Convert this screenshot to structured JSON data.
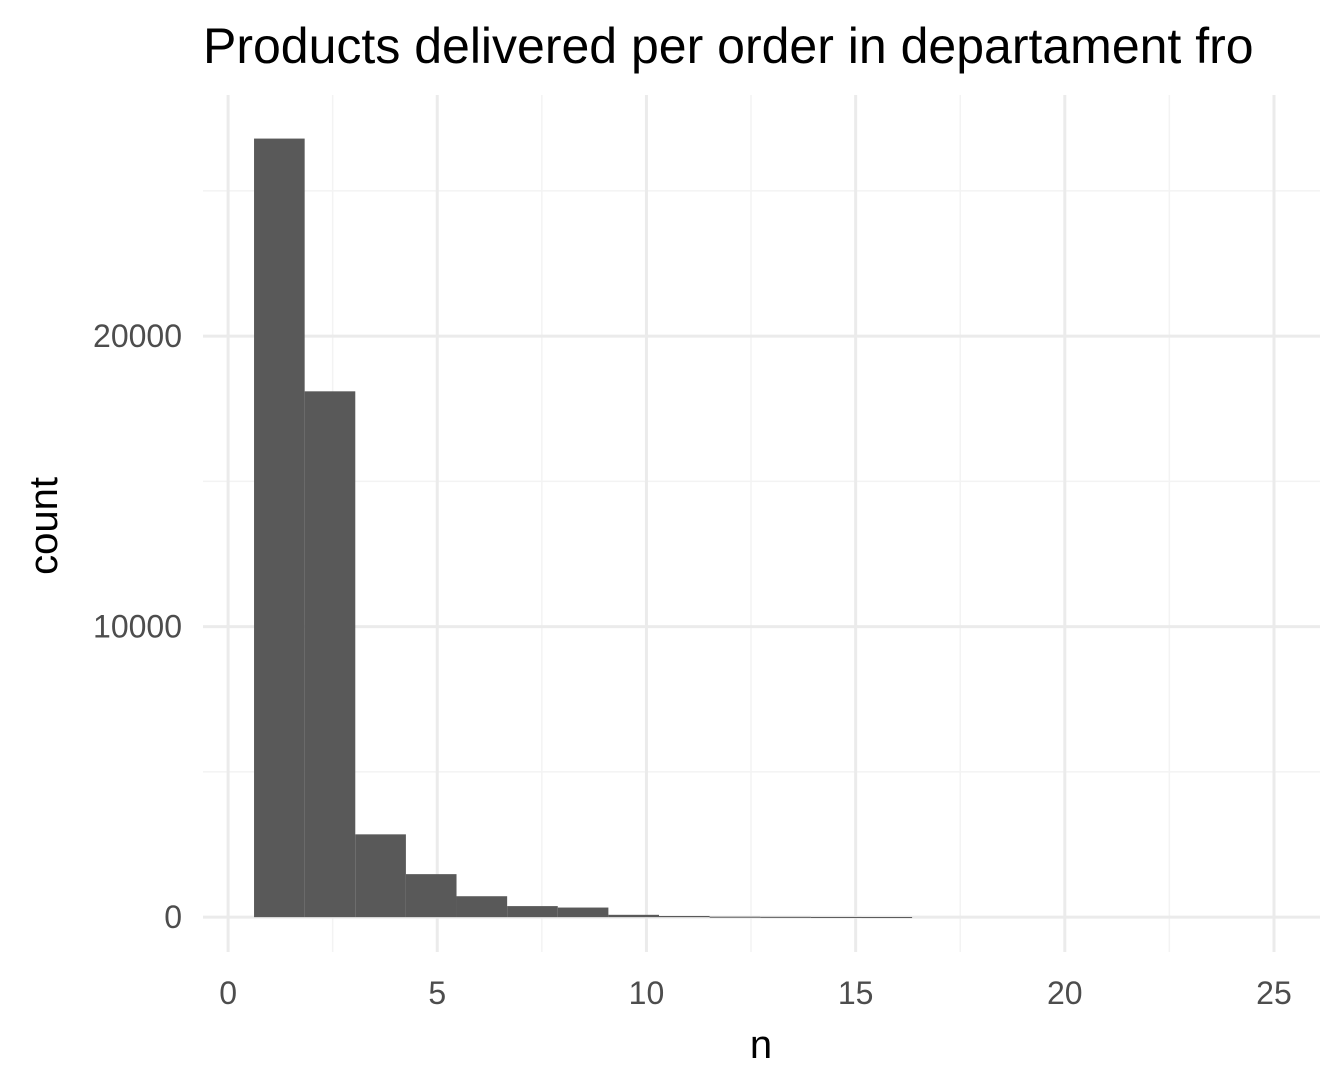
{
  "chart_data": {
    "type": "bar",
    "title": "Products delivered per order in departament fro",
    "xlabel": "n",
    "ylabel": "count",
    "xlim": [
      -0.6,
      26.1
    ],
    "ylim": [
      -1200,
      28300
    ],
    "x_ticks": [
      0,
      5,
      10,
      15,
      20,
      25
    ],
    "x_tick_labels": [
      "0",
      "5",
      "10",
      "15",
      "20",
      "25"
    ],
    "y_ticks": [
      0,
      10000,
      20000
    ],
    "y_tick_labels": [
      "0",
      "10000",
      "20000"
    ],
    "x_minor_breaks": [
      2.5,
      7.5,
      12.5,
      17.5,
      22.5
    ],
    "y_minor_breaks": [
      5000,
      15000,
      25000
    ],
    "grid": true,
    "bin_width": 1.21,
    "bins": [
      {
        "x0": 0.62,
        "x1": 1.83,
        "count": 26800
      },
      {
        "x0": 1.83,
        "x1": 3.04,
        "count": 18100
      },
      {
        "x0": 3.04,
        "x1": 4.25,
        "count": 2850
      },
      {
        "x0": 4.25,
        "x1": 5.46,
        "count": 1480
      },
      {
        "x0": 5.46,
        "x1": 6.67,
        "count": 720
      },
      {
        "x0": 6.67,
        "x1": 7.88,
        "count": 380
      },
      {
        "x0": 7.88,
        "x1": 9.09,
        "count": 330
      },
      {
        "x0": 9.09,
        "x1": 10.3,
        "count": 80
      },
      {
        "x0": 10.3,
        "x1": 11.51,
        "count": 40
      },
      {
        "x0": 11.51,
        "x1": 12.72,
        "count": 15
      },
      {
        "x0": 12.72,
        "x1": 13.93,
        "count": 10
      },
      {
        "x0": 13.93,
        "x1": 15.14,
        "count": 6
      },
      {
        "x0": 15.14,
        "x1": 16.35,
        "count": 4
      }
    ],
    "colors": {
      "bar": "#595959",
      "grid_major": "#ebebeb",
      "grid_minor": "#f3f3f3",
      "tick_text": "#4d4d4d",
      "title_text": "#000000",
      "background": "#ffffff"
    }
  }
}
